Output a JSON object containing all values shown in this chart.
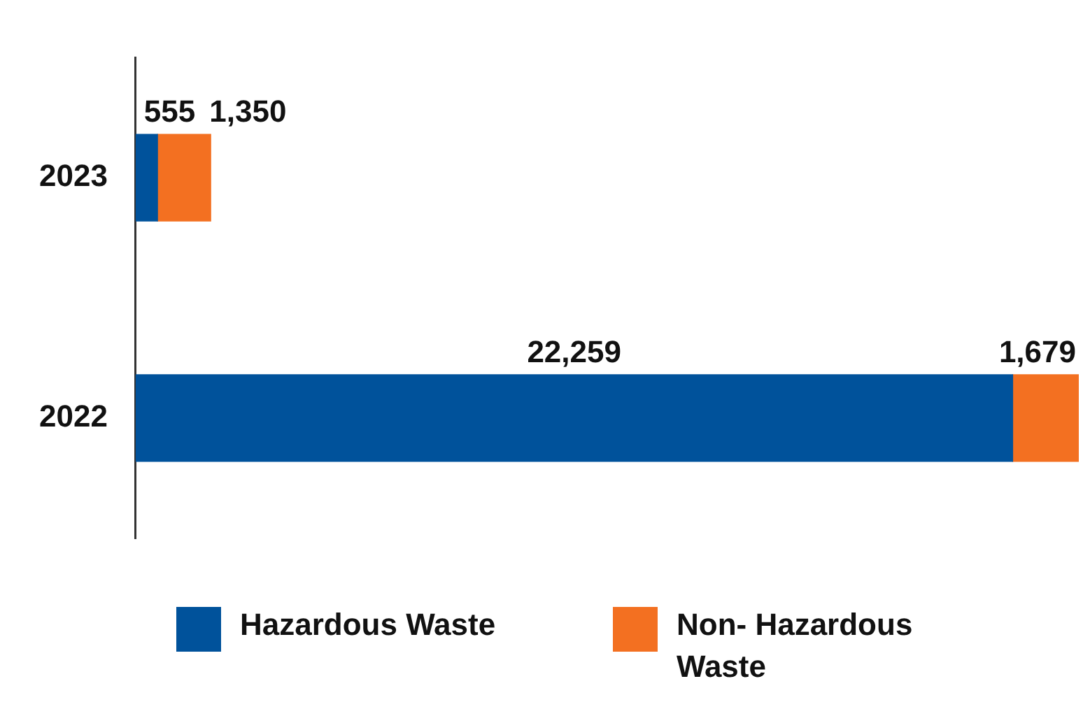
{
  "chart_data": {
    "type": "bar",
    "orientation": "horizontal",
    "stacked": true,
    "categories": [
      "2023",
      "2022"
    ],
    "legend": "bottom",
    "series": [
      {
        "name": "Hazardous Waste",
        "color": "#00529b",
        "values": [
          555,
          22259
        ],
        "value_labels": [
          "555",
          "22,259"
        ]
      },
      {
        "name": "Non- Hazardous Waste",
        "color": "#f37021",
        "values": [
          1350,
          1679
        ],
        "value_labels": [
          "1,350",
          "1,679"
        ]
      }
    ]
  }
}
